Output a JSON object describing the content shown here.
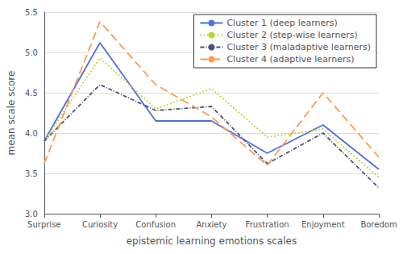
{
  "chart_data": {
    "type": "line",
    "categories": [
      "Surprise",
      "Curiosity",
      "Confusion",
      "Anxiety",
      "Frustration",
      "Enjoyment",
      "Boredom"
    ],
    "series": [
      {
        "name": "Cluster 1 (deep learners)",
        "line_style": "solid",
        "values": [
          3.9,
          5.12,
          4.15,
          4.15,
          3.75,
          4.1,
          3.55
        ]
      },
      {
        "name": "Cluster 2 (step-wise learners)",
        "line_style": "dotted",
        "values": [
          3.9,
          4.93,
          4.3,
          4.55,
          3.95,
          4.05,
          3.45
        ]
      },
      {
        "name": "Cluster 3 (maladaptive learners)",
        "line_style": "dashdot",
        "values": [
          3.9,
          4.6,
          4.28,
          4.33,
          3.62,
          4.0,
          3.32
        ]
      },
      {
        "name": "Cluster 4 (adaptive learners)",
        "line_style": "dashed",
        "values": [
          3.62,
          5.38,
          4.6,
          4.2,
          3.6,
          4.5,
          3.7
        ]
      }
    ],
    "ylabel": "mean scale score",
    "xlabel": "epistemic learning emotions scales",
    "ylim": [
      3.0,
      5.5
    ],
    "yticks": [
      {
        "value": 3.0,
        "label": "3.0"
      },
      {
        "value": 3.5,
        "label": "3.5"
      },
      {
        "value": 4.0,
        "label": "4.0"
      },
      {
        "value": 4.5,
        "label": "4.5"
      },
      {
        "value": 5.0,
        "label": "5.0"
      },
      {
        "value": 5.5,
        "label": "5.5"
      }
    ],
    "grid": true,
    "legend": "upper right"
  }
}
